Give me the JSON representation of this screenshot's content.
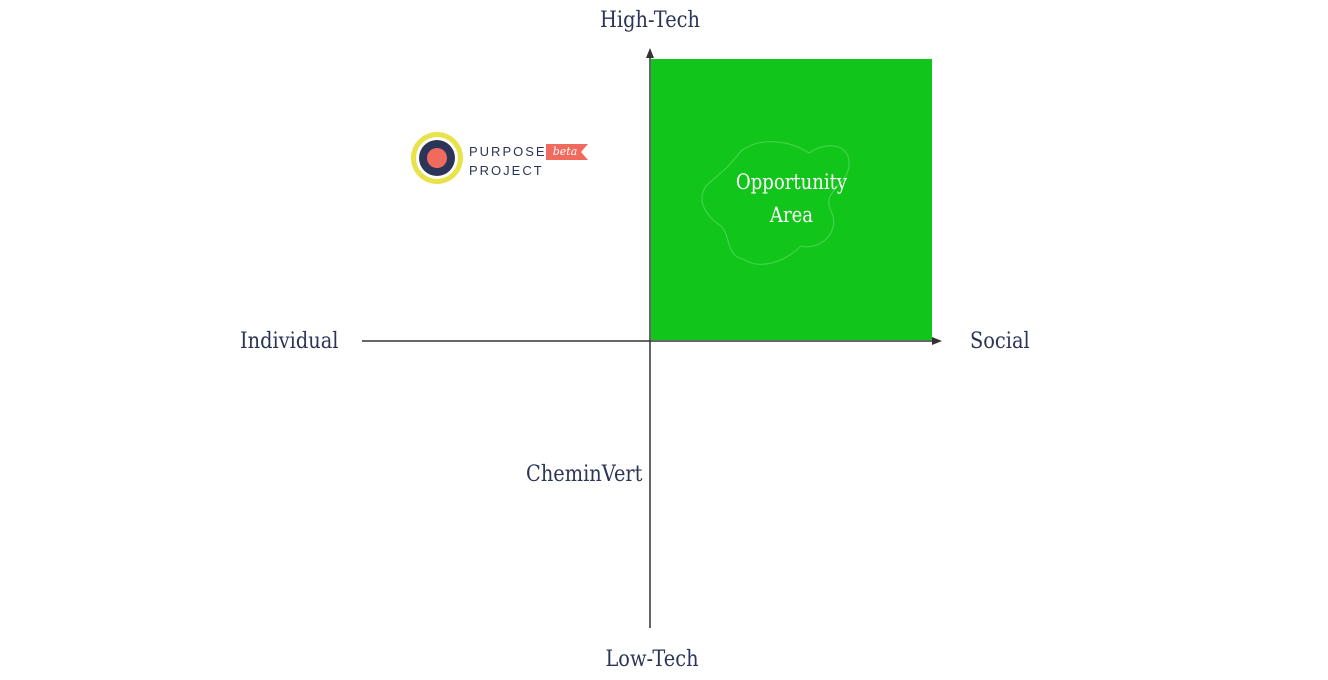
{
  "axes": {
    "top_label": "High-Tech",
    "bottom_label": "Low-Tech",
    "left_label": "Individual",
    "right_label": "Social"
  },
  "quadrant": {
    "label_line1": "Opportunity",
    "label_line2": "Area",
    "fill_color": "#12c51a"
  },
  "company_label": "CheminVert",
  "logo": {
    "word_top": "PURPOSE",
    "word_bottom": "PROJECT",
    "badge": "beta",
    "ring_color": "#e8e34a",
    "core_color": "#2c3557",
    "dot_color": "#f06a5e"
  },
  "colors": {
    "axis": "#2c3557",
    "text": "#2c3557"
  }
}
